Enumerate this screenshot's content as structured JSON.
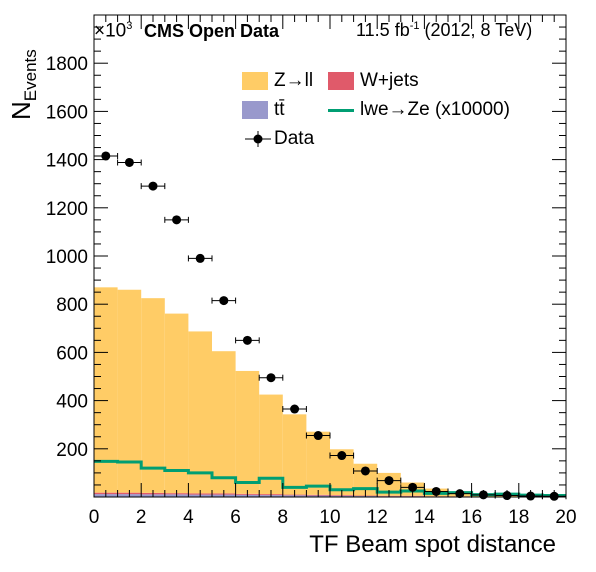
{
  "header": {
    "exponent_prefix": "×10",
    "exponent_power": "3",
    "experiment": "CMS Open Data",
    "lumi_value": "11.5 fb",
    "lumi_power": "-1",
    "lumi_suffix": " (2012, 8 TeV)"
  },
  "chart_data": {
    "type": "bar",
    "xlabel": "TF Beam spot distance",
    "ylabel_main": "N",
    "ylabel_sub": "Events",
    "xlim": [
      0,
      20
    ],
    "ylim": [
      0,
      2000
    ],
    "x_ticks": [
      0,
      2,
      4,
      6,
      8,
      10,
      12,
      14,
      16,
      18,
      20
    ],
    "y_ticks": [
      200,
      400,
      600,
      800,
      1000,
      1200,
      1400,
      1600,
      1800
    ],
    "bin_edges": [
      0,
      1,
      2,
      3,
      4,
      5,
      6,
      7,
      8,
      9,
      10,
      11,
      12,
      13,
      14,
      15,
      16,
      17,
      18,
      19,
      20
    ],
    "colors": {
      "zll": "#ffcc66",
      "wjets": "#e05a6a",
      "ttbar": "#9999cc",
      "signal": "#009e73",
      "data": "#000000"
    },
    "series": [
      {
        "name": "tt̄",
        "kind": "stack",
        "values": [
          12,
          12,
          11,
          11,
          10,
          10,
          9,
          8,
          7,
          6,
          5,
          4,
          3,
          3,
          2,
          2,
          1,
          1,
          1,
          1
        ]
      },
      {
        "name": "W+jets",
        "kind": "stack",
        "values": [
          6,
          6,
          6,
          5,
          5,
          5,
          4,
          4,
          3,
          3,
          3,
          2,
          2,
          2,
          1,
          1,
          1,
          1,
          1,
          1
        ]
      },
      {
        "name": "Z→ll",
        "kind": "stack",
        "values": [
          852,
          842,
          808,
          745,
          672,
          590,
          510,
          413,
          333,
          262,
          190,
          132,
          95,
          55,
          32,
          17,
          10,
          5,
          2,
          1
        ]
      },
      {
        "name": "Data",
        "kind": "points",
        "values": [
          1415,
          1388,
          1290,
          1150,
          990,
          815,
          650,
          495,
          365,
          255,
          172,
          108,
          68,
          40,
          23,
          14,
          9,
          6,
          4,
          3
        ]
      },
      {
        "name": "lwe→Ze (x10000)",
        "kind": "line",
        "values": [
          148,
          145,
          120,
          110,
          100,
          80,
          60,
          78,
          40,
          45,
          30,
          35,
          20,
          25,
          15,
          18,
          10,
          12,
          8,
          6
        ]
      }
    ]
  }
}
